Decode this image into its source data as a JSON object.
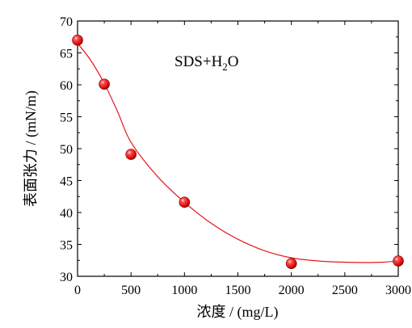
{
  "chart_data": {
    "type": "scatter",
    "xlabel": "浓度 / (mg/L)",
    "ylabel": "表面张力 / (mN/m)",
    "xlim": [
      0,
      3000
    ],
    "ylim": [
      30,
      70
    ],
    "x_ticks": [
      0,
      500,
      1000,
      1500,
      2000,
      2500,
      3000
    ],
    "y_ticks": [
      30,
      35,
      40,
      45,
      50,
      55,
      60,
      65,
      70
    ],
    "annotation": {
      "base": "SDS+H",
      "sub": "2",
      "tail": "O"
    },
    "grid": false,
    "legend": "none",
    "series": [
      {
        "x": [
          0,
          250,
          500,
          1000,
          2000,
          3000
        ],
        "y": [
          67.0,
          60.1,
          49.1,
          41.6,
          32.0,
          32.4
        ]
      }
    ],
    "fit_curve": {
      "x": [
        0,
        125,
        250,
        375,
        500,
        750,
        1000,
        1250,
        1500,
        1750,
        2000,
        2250,
        2500,
        2700,
        2850,
        3000
      ],
      "y": [
        66.5,
        63.8,
        60.2,
        55.8,
        51.0,
        45.6,
        41.6,
        38.3,
        35.8,
        34.0,
        32.9,
        32.4,
        32.2,
        32.15,
        32.2,
        32.4
      ]
    },
    "colors": {
      "marker": "#e8161b",
      "fit_line": "#e8161b",
      "axis": "#000000"
    }
  }
}
